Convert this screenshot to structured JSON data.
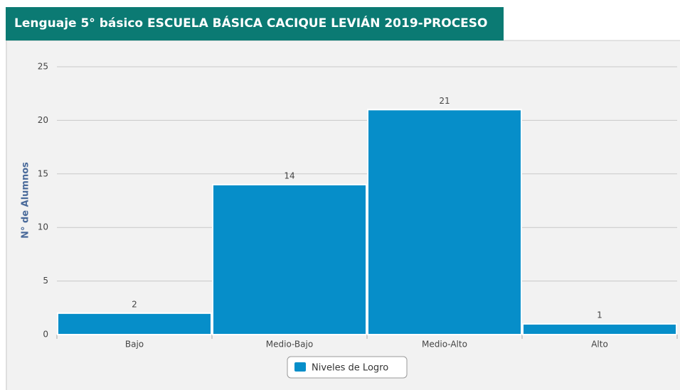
{
  "chart_data": {
    "type": "bar",
    "title": "Lenguaje 5° básico ESCUELA BÁSICA CACIQUE LEVIÁN 2019-PROCESO",
    "y_label": "N° de Alumnos",
    "categories": [
      "Bajo",
      "Medio-Bajo",
      "Medio-Alto",
      "Alto"
    ],
    "series": [
      {
        "name": "Niveles de Logro",
        "color": "#068ec9",
        "values": [
          2,
          14,
          21,
          1
        ]
      }
    ],
    "ylim": [
      0,
      25
    ],
    "yticks": [
      0,
      5,
      10,
      15,
      20,
      25
    ],
    "grid": true,
    "legend": "bottom"
  }
}
